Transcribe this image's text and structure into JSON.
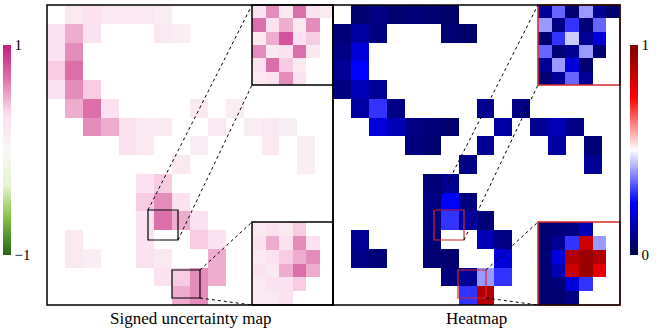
{
  "chart_data": {
    "type": "heatmap",
    "tick_labels": false,
    "panels": [
      {
        "label": "Signed uncertainty map",
        "colors": [
          "#276419",
          "#7fbc41",
          "#e6f5d0",
          "#f7f7f7",
          "#fde0ef",
          "#de77ae",
          "#c51b7d"
        ],
        "zlim": [
          -1,
          1
        ],
        "ticks": [
          {
            "value": -1,
            "label": "−1"
          },
          1
        ],
        "cells": [
          [
            null,
            0.2,
            0.3,
            0.2,
            0.25,
            0.2,
            0.15,
            null,
            null,
            null,
            null,
            null,
            null,
            null,
            null,
            null
          ],
          [
            0.3,
            0.5,
            0.3,
            null,
            null,
            null,
            0.2,
            0.15,
            null,
            null,
            null,
            null,
            null,
            null,
            null,
            null
          ],
          [
            0.3,
            0.6,
            null,
            null,
            null,
            null,
            null,
            null,
            null,
            null,
            null,
            null,
            null,
            null,
            null,
            null
          ],
          [
            0.4,
            0.7,
            null,
            null,
            null,
            null,
            null,
            null,
            null,
            null,
            null,
            null,
            null,
            null,
            null,
            null
          ],
          [
            0.3,
            0.6,
            0.4,
            null,
            null,
            null,
            null,
            null,
            null,
            null,
            null,
            null,
            null,
            null,
            null,
            null
          ],
          [
            null,
            0.5,
            0.7,
            0.3,
            null,
            null,
            null,
            null,
            0.2,
            null,
            0.15,
            null,
            null,
            null,
            null,
            null
          ],
          [
            null,
            null,
            0.6,
            0.5,
            0.3,
            0.2,
            0.2,
            null,
            null,
            0.2,
            null,
            0.15,
            0.2,
            0.1,
            null,
            null
          ],
          [
            null,
            null,
            null,
            null,
            0.3,
            0.2,
            null,
            null,
            0.15,
            null,
            null,
            null,
            0.2,
            null,
            0.1,
            null
          ],
          [
            null,
            null,
            null,
            null,
            null,
            null,
            null,
            0.2,
            null,
            null,
            null,
            null,
            null,
            null,
            0.15,
            null
          ],
          [
            null,
            null,
            null,
            null,
            null,
            0.3,
            0.4,
            null,
            null,
            null,
            null,
            null,
            null,
            null,
            null,
            null
          ],
          [
            null,
            null,
            null,
            null,
            null,
            0.4,
            0.6,
            0.3,
            null,
            null,
            null,
            null,
            null,
            null,
            null,
            null
          ],
          [
            null,
            null,
            null,
            null,
            null,
            0.3,
            0.7,
            0.5,
            0.3,
            null,
            null,
            null,
            null,
            null,
            null,
            null
          ],
          [
            null,
            0.2,
            null,
            null,
            null,
            0.3,
            null,
            null,
            0.4,
            0.3,
            null,
            null,
            null,
            null,
            null,
            null
          ],
          [
            null,
            0.2,
            0.15,
            null,
            null,
            0.3,
            0.2,
            null,
            null,
            0.5,
            null,
            null,
            null,
            null,
            null,
            null
          ],
          [
            null,
            null,
            null,
            null,
            null,
            null,
            0.3,
            0.4,
            0.6,
            0.5,
            null,
            null,
            null,
            null,
            null,
            null
          ],
          [
            null,
            null,
            null,
            null,
            null,
            null,
            null,
            0.5,
            0.6,
            null,
            null,
            null,
            null,
            null,
            null,
            null
          ]
        ],
        "insets": [
          [
            [
              0.3,
              0.6,
              0.2,
              0.7,
              0.3,
              0.2
            ],
            [
              0.7,
              0.3,
              0.5,
              0.2,
              0.6,
              null
            ],
            [
              0.2,
              0.5,
              0.8,
              0.3,
              0.4,
              null
            ],
            [
              0.6,
              0.2,
              0.3,
              0.7,
              0.2,
              null
            ],
            [
              0.3,
              0.7,
              0.4,
              0.2,
              null,
              null
            ],
            [
              0.2,
              0.3,
              0.6,
              0.3,
              null,
              null
            ]
          ],
          [
            [
              0.2,
              0.3,
              0.2,
              0.4,
              null,
              null
            ],
            [
              0.3,
              0.5,
              0.3,
              0.6,
              0.3,
              null
            ],
            [
              0.2,
              0.3,
              0.4,
              0.5,
              0.6,
              null
            ],
            [
              0.3,
              0.2,
              0.5,
              0.7,
              0.5,
              null
            ],
            [
              0.2,
              0.3,
              0.3,
              0.4,
              null,
              null
            ],
            [
              0.2,
              0.2,
              0.3,
              null,
              null,
              null
            ]
          ]
        ]
      },
      {
        "label": "Heatmap",
        "colors": [
          "#00004c",
          "#0000ff",
          "#ffffff",
          "#ff0000",
          "#7f0000"
        ],
        "zlim": [
          0,
          1
        ],
        "ticks": [
          0,
          1
        ],
        "cells": [
          [
            null,
            0.05,
            0.08,
            0.05,
            0.06,
            0.05,
            0.04,
            null,
            null,
            null,
            null,
            null,
            null,
            null,
            null,
            null
          ],
          [
            0.06,
            0.12,
            0.07,
            null,
            null,
            null,
            0.05,
            0.04,
            null,
            null,
            null,
            null,
            null,
            null,
            null,
            null
          ],
          [
            0.08,
            0.2,
            null,
            null,
            null,
            null,
            null,
            null,
            null,
            null,
            null,
            null,
            null,
            null,
            null,
            null
          ],
          [
            0.1,
            0.25,
            null,
            null,
            null,
            null,
            null,
            null,
            null,
            null,
            null,
            null,
            null,
            null,
            null,
            null
          ],
          [
            0.07,
            0.15,
            0.1,
            null,
            null,
            null,
            null,
            null,
            null,
            null,
            null,
            null,
            null,
            null,
            null,
            null
          ],
          [
            null,
            0.12,
            0.3,
            0.08,
            null,
            null,
            null,
            null,
            0.1,
            null,
            0.08,
            null,
            null,
            null,
            null,
            null
          ],
          [
            null,
            null,
            0.2,
            0.15,
            0.08,
            0.06,
            0.05,
            null,
            null,
            0.12,
            null,
            0.1,
            0.15,
            0.08,
            null,
            null
          ],
          [
            null,
            null,
            null,
            null,
            0.07,
            0.05,
            null,
            null,
            0.1,
            null,
            null,
            null,
            0.12,
            null,
            0.06,
            null
          ],
          [
            null,
            null,
            null,
            null,
            null,
            null,
            null,
            0.08,
            null,
            null,
            null,
            null,
            null,
            null,
            0.1,
            null
          ],
          [
            null,
            null,
            null,
            null,
            null,
            0.06,
            0.1,
            null,
            null,
            null,
            null,
            null,
            null,
            null,
            null,
            null
          ],
          [
            null,
            null,
            null,
            null,
            null,
            0.08,
            0.25,
            0.07,
            null,
            null,
            null,
            null,
            null,
            null,
            null,
            null
          ],
          [
            null,
            null,
            null,
            null,
            null,
            0.07,
            0.3,
            0.12,
            0.06,
            null,
            null,
            null,
            null,
            null,
            null,
            null
          ],
          [
            null,
            0.1,
            null,
            null,
            null,
            0.06,
            null,
            null,
            0.15,
            0.08,
            null,
            null,
            null,
            null,
            null,
            null
          ],
          [
            null,
            0.08,
            0.06,
            null,
            null,
            0.05,
            0.05,
            null,
            null,
            0.2,
            null,
            null,
            null,
            null,
            null,
            null
          ],
          [
            null,
            null,
            null,
            null,
            null,
            null,
            0.07,
            0.1,
            0.4,
            0.3,
            null,
            null,
            null,
            null,
            null,
            null
          ],
          [
            null,
            null,
            null,
            null,
            null,
            null,
            null,
            0.3,
            0.9,
            null,
            null,
            null,
            null,
            null,
            null,
            null
          ]
        ],
        "insets": [
          [
            [
              0.1,
              0.35,
              0.05,
              0.4,
              0.1,
              0.05
            ],
            [
              0.4,
              0.08,
              0.3,
              0.06,
              0.35,
              null
            ],
            [
              0.05,
              0.3,
              0.45,
              0.1,
              0.2,
              null
            ],
            [
              0.35,
              0.06,
              0.1,
              0.4,
              0.05,
              null
            ],
            [
              0.1,
              0.4,
              0.2,
              0.05,
              null,
              null
            ],
            [
              0.05,
              0.1,
              0.35,
              0.1,
              null,
              null
            ]
          ],
          [
            [
              0.05,
              0.06,
              0.08,
              0.15,
              null,
              null
            ],
            [
              0.05,
              0.1,
              0.3,
              0.85,
              0.4,
              null
            ],
            [
              0.06,
              0.2,
              0.9,
              0.95,
              0.9,
              null
            ],
            [
              0.05,
              0.15,
              0.85,
              0.95,
              0.8,
              null
            ],
            [
              0.05,
              0.06,
              0.2,
              0.3,
              null,
              null
            ],
            [
              0.05,
              0.05,
              0.08,
              null,
              null,
              null
            ]
          ]
        ]
      }
    ]
  }
}
